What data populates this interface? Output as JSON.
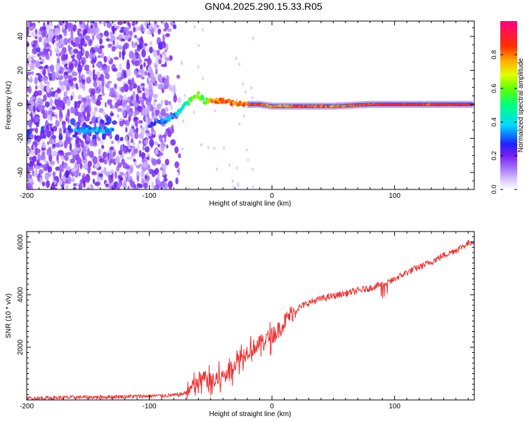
{
  "title": "GN04.2025.290.15.33.R05",
  "chart_data": [
    {
      "type": "heatmap",
      "name": "spectrogram",
      "title": "GN04.2025.290.15.33.R05",
      "xlabel": "Height of straight line (km)",
      "ylabel": "Frequency (Hz)",
      "xlim": [
        -200,
        165
      ],
      "ylim": [
        -50,
        49
      ],
      "xticks": [
        -200,
        -100,
        0,
        100
      ],
      "yticks": [
        -40,
        -20,
        0,
        20,
        40
      ],
      "colorbar": {
        "label": "Normalized spectral amplitude",
        "range": [
          0,
          1
        ],
        "ticks": [
          "0.0",
          "0.2",
          "0.4",
          "0.6",
          "0.8"
        ],
        "colors": [
          "#ffffff",
          "#c8a8ff",
          "#8a2be2",
          "#0000ff",
          "#00ffff",
          "#00ff00",
          "#ffff00",
          "#ff8000",
          "#ff0000",
          "#ff00aa"
        ]
      },
      "ridge": {
        "description_points_x_km": [
          -150,
          -130,
          -110,
          -100,
          -90,
          -80,
          -70,
          -65,
          -60,
          -55,
          -50,
          -40,
          -30,
          -20,
          -10,
          0,
          20,
          50,
          80,
          100,
          130,
          165
        ],
        "description_points_freq_hz": [
          -15,
          -15,
          -14,
          -12,
          -10,
          -7,
          0,
          3,
          6,
          2,
          2,
          2,
          1,
          0,
          0,
          -1,
          -1,
          -1,
          0,
          0,
          0,
          0
        ],
        "amplitude": [
          0.35,
          0.35,
          0.2,
          0.25,
          0.3,
          0.35,
          0.45,
          0.6,
          0.6,
          0.55,
          0.75,
          0.85,
          0.8,
          0.8,
          0.85,
          0.75,
          0.85,
          0.8,
          0.85,
          0.9,
          0.85,
          0.9
        ]
      }
    },
    {
      "type": "line",
      "name": "snr",
      "xlabel": "Height of straight line (km)",
      "ylabel": "SNR (10 * v/v)",
      "xlim": [
        -200,
        165
      ],
      "ylim": [
        0,
        6400
      ],
      "xticks": [
        -200,
        -100,
        0,
        100
      ],
      "yticks": [
        2000,
        4000,
        6000
      ],
      "color": "#f03030",
      "x": [
        -200,
        -180,
        -160,
        -140,
        -120,
        -100,
        -85,
        -75,
        -70,
        -65,
        -60,
        -55,
        -50,
        -45,
        -40,
        -35,
        -30,
        -25,
        -20,
        -15,
        -10,
        -5,
        0,
        5,
        10,
        15,
        20,
        30,
        40,
        50,
        60,
        70,
        80,
        90,
        95,
        100,
        110,
        120,
        130,
        140,
        150,
        160,
        165
      ],
      "y": [
        60,
        80,
        100,
        110,
        130,
        150,
        170,
        200,
        280,
        450,
        650,
        850,
        650,
        700,
        900,
        1100,
        1400,
        1650,
        1850,
        2000,
        2150,
        2300,
        2450,
        2650,
        2950,
        3250,
        3450,
        3700,
        3850,
        3950,
        4050,
        4150,
        4250,
        4400,
        4450,
        4600,
        4850,
        5050,
        5250,
        5500,
        5700,
        5950,
        6050
      ]
    }
  ]
}
